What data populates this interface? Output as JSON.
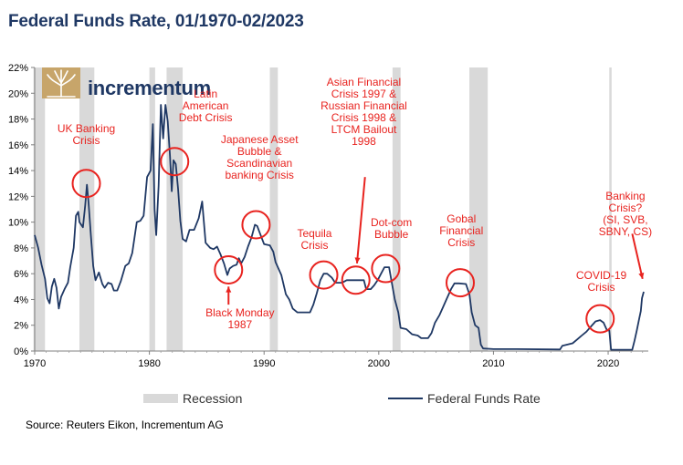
{
  "title": "Federal Funds Rate, 01/1970-02/2023",
  "source": "Source: Reuters Eikon, Incrementum AG",
  "logo_text": "incrementum",
  "legend": {
    "recession": "Recession",
    "rate": "Federal Funds Rate"
  },
  "colors": {
    "line": "#1f3864",
    "recession": "#d9d9d9",
    "annotation": "#e8231f",
    "title": "#1f3864"
  },
  "chart_data": {
    "type": "line",
    "title": "Federal Funds Rate, 01/1970-02/2023",
    "xlim": [
      1970,
      2023.5
    ],
    "ylim": [
      0,
      22
    ],
    "x_ticks": [
      "1970",
      "1980",
      "1990",
      "2000",
      "2010",
      "2020"
    ],
    "y_ticks": [
      "0%",
      "2%",
      "4%",
      "6%",
      "8%",
      "10%",
      "12%",
      "14%",
      "16%",
      "18%",
      "20%",
      "22%"
    ],
    "grid": false,
    "legend_placement": "bottom",
    "recessions": [
      [
        1969.9,
        1970.9
      ],
      [
        1973.9,
        1975.2
      ],
      [
        1980.0,
        1980.5
      ],
      [
        1981.5,
        1982.9
      ],
      [
        1990.5,
        1991.2
      ],
      [
        2001.2,
        2001.9
      ],
      [
        2007.9,
        2009.5
      ],
      [
        2020.1,
        2020.3
      ]
    ],
    "series": [
      {
        "name": "Federal Funds Rate",
        "points": [
          [
            1970.0,
            9.0
          ],
          [
            1970.3,
            8.0
          ],
          [
            1970.6,
            6.7
          ],
          [
            1970.9,
            5.6
          ],
          [
            1971.1,
            4.1
          ],
          [
            1971.3,
            3.7
          ],
          [
            1971.5,
            5.0
          ],
          [
            1971.7,
            5.6
          ],
          [
            1971.9,
            4.9
          ],
          [
            1972.1,
            3.3
          ],
          [
            1972.3,
            4.2
          ],
          [
            1972.6,
            4.8
          ],
          [
            1972.9,
            5.3
          ],
          [
            1973.1,
            6.5
          ],
          [
            1973.4,
            8.0
          ],
          [
            1973.6,
            10.5
          ],
          [
            1973.8,
            10.8
          ],
          [
            1973.9,
            10.0
          ],
          [
            1974.2,
            9.6
          ],
          [
            1974.4,
            11.3
          ],
          [
            1974.55,
            12.9
          ],
          [
            1974.7,
            11.5
          ],
          [
            1974.9,
            9.0
          ],
          [
            1975.1,
            6.6
          ],
          [
            1975.3,
            5.5
          ],
          [
            1975.6,
            6.1
          ],
          [
            1975.9,
            5.2
          ],
          [
            1976.1,
            4.9
          ],
          [
            1976.4,
            5.3
          ],
          [
            1976.7,
            5.2
          ],
          [
            1976.9,
            4.7
          ],
          [
            1977.2,
            4.7
          ],
          [
            1977.5,
            5.4
          ],
          [
            1977.9,
            6.6
          ],
          [
            1978.2,
            6.8
          ],
          [
            1978.5,
            7.6
          ],
          [
            1978.9,
            10.0
          ],
          [
            1979.2,
            10.1
          ],
          [
            1979.5,
            10.5
          ],
          [
            1979.8,
            13.5
          ],
          [
            1980.1,
            14.0
          ],
          [
            1980.3,
            17.6
          ],
          [
            1980.45,
            11.0
          ],
          [
            1980.6,
            9.0
          ],
          [
            1980.8,
            12.8
          ],
          [
            1981.0,
            19.1
          ],
          [
            1981.2,
            16.5
          ],
          [
            1981.4,
            19.1
          ],
          [
            1981.6,
            17.8
          ],
          [
            1981.8,
            15.1
          ],
          [
            1981.95,
            12.4
          ],
          [
            1982.1,
            14.8
          ],
          [
            1982.3,
            14.5
          ],
          [
            1982.5,
            12.6
          ],
          [
            1982.7,
            10.1
          ],
          [
            1982.9,
            8.7
          ],
          [
            1983.2,
            8.5
          ],
          [
            1983.5,
            9.4
          ],
          [
            1983.9,
            9.4
          ],
          [
            1984.3,
            10.3
          ],
          [
            1984.6,
            11.6
          ],
          [
            1984.9,
            8.4
          ],
          [
            1985.3,
            8.0
          ],
          [
            1985.6,
            7.9
          ],
          [
            1985.9,
            8.1
          ],
          [
            1986.2,
            7.5
          ],
          [
            1986.5,
            6.8
          ],
          [
            1986.8,
            5.9
          ],
          [
            1987.0,
            6.4
          ],
          [
            1987.3,
            6.6
          ],
          [
            1987.6,
            6.7
          ],
          [
            1987.8,
            7.2
          ],
          [
            1988.0,
            6.8
          ],
          [
            1988.3,
            7.3
          ],
          [
            1988.6,
            8.1
          ],
          [
            1988.9,
            8.8
          ],
          [
            1989.2,
            9.8
          ],
          [
            1989.4,
            9.7
          ],
          [
            1989.7,
            9.0
          ],
          [
            1990.0,
            8.3
          ],
          [
            1990.5,
            8.2
          ],
          [
            1990.8,
            7.7
          ],
          [
            1991.0,
            6.9
          ],
          [
            1991.5,
            5.9
          ],
          [
            1991.9,
            4.4
          ],
          [
            1992.2,
            4.0
          ],
          [
            1992.5,
            3.3
          ],
          [
            1992.9,
            3.0
          ],
          [
            1993.5,
            3.0
          ],
          [
            1994.0,
            3.0
          ],
          [
            1994.3,
            3.6
          ],
          [
            1994.6,
            4.5
          ],
          [
            1994.9,
            5.5
          ],
          [
            1995.2,
            6.0
          ],
          [
            1995.5,
            6.0
          ],
          [
            1995.9,
            5.7
          ],
          [
            1996.2,
            5.3
          ],
          [
            1996.8,
            5.3
          ],
          [
            1997.2,
            5.5
          ],
          [
            1997.8,
            5.5
          ],
          [
            1998.2,
            5.5
          ],
          [
            1998.7,
            5.5
          ],
          [
            1998.9,
            4.8
          ],
          [
            1999.3,
            4.8
          ],
          [
            1999.6,
            5.1
          ],
          [
            1999.9,
            5.5
          ],
          [
            2000.2,
            6.0
          ],
          [
            2000.5,
            6.5
          ],
          [
            2000.9,
            6.5
          ],
          [
            2001.1,
            5.5
          ],
          [
            2001.4,
            4.0
          ],
          [
            2001.7,
            3.0
          ],
          [
            2001.9,
            1.8
          ],
          [
            2002.4,
            1.7
          ],
          [
            2002.9,
            1.3
          ],
          [
            2003.4,
            1.2
          ],
          [
            2003.7,
            1.0
          ],
          [
            2004.3,
            1.0
          ],
          [
            2004.6,
            1.4
          ],
          [
            2004.9,
            2.2
          ],
          [
            2005.3,
            2.8
          ],
          [
            2005.6,
            3.4
          ],
          [
            2005.9,
            4.0
          ],
          [
            2006.3,
            4.8
          ],
          [
            2006.6,
            5.25
          ],
          [
            2007.0,
            5.25
          ],
          [
            2007.6,
            5.2
          ],
          [
            2007.9,
            4.4
          ],
          [
            2008.1,
            3.0
          ],
          [
            2008.4,
            2.0
          ],
          [
            2008.7,
            1.8
          ],
          [
            2008.9,
            0.5
          ],
          [
            2009.1,
            0.2
          ],
          [
            2010.0,
            0.15
          ],
          [
            2012.0,
            0.15
          ],
          [
            2015.8,
            0.12
          ],
          [
            2016.0,
            0.4
          ],
          [
            2016.9,
            0.6
          ],
          [
            2017.3,
            0.9
          ],
          [
            2017.7,
            1.2
          ],
          [
            2018.1,
            1.5
          ],
          [
            2018.5,
            1.9
          ],
          [
            2018.9,
            2.3
          ],
          [
            2019.3,
            2.4
          ],
          [
            2019.6,
            2.2
          ],
          [
            2019.9,
            1.6
          ],
          [
            2020.1,
            1.6
          ],
          [
            2020.25,
            0.1
          ],
          [
            2022.1,
            0.1
          ],
          [
            2022.3,
            0.8
          ],
          [
            2022.5,
            1.6
          ],
          [
            2022.7,
            2.5
          ],
          [
            2022.85,
            3.1
          ],
          [
            2022.95,
            4.1
          ],
          [
            2023.1,
            4.6
          ]
        ]
      }
    ],
    "annotations": [
      {
        "text": "UK Banking\nCrisis",
        "circle": [
          1974.5,
          13.0
        ],
        "label": [
          1974.5,
          16.8
        ]
      },
      {
        "text": "Latin\nAmerican\nDebt Crisis",
        "circle": [
          1982.2,
          14.7
        ],
        "label": [
          1984.9,
          19.0
        ]
      },
      {
        "text": "Japanese Asset\nBubble &\nScandinavian\nbanking Crisis",
        "circle": [
          1989.3,
          9.8
        ],
        "label": [
          1989.6,
          15.0
        ]
      },
      {
        "text": "Black Monday\n1987",
        "circle": [
          1986.9,
          6.3
        ],
        "label": [
          1987.9,
          2.5
        ]
      },
      {
        "text": "Tequila\nCrisis",
        "circle": [
          1995.2,
          5.9
        ],
        "label": [
          1994.4,
          8.6
        ]
      },
      {
        "text": "Asian Financial\nCrisis 1997 &\nRussian Financial\nCrisis 1998 &\nLTCM Bailout\n1998",
        "circle": [
          1998.0,
          5.5
        ],
        "label": [
          1998.7,
          18.5
        ]
      },
      {
        "text": "Dot-com\nBubble",
        "circle": [
          2000.6,
          6.4
        ],
        "label": [
          2001.1,
          9.5
        ]
      },
      {
        "text": "Gobal\nFinancial\nCrisis",
        "circle": [
          2007.1,
          5.3
        ],
        "label": [
          2007.2,
          9.3
        ]
      },
      {
        "text": "COVID-19\nCrisis",
        "circle": [
          2019.3,
          2.5
        ],
        "label": [
          2019.4,
          5.4
        ]
      },
      {
        "text": "Banking Crisis?\n(SI, SVB, SBNY, CS)",
        "circle": null,
        "label": [
          2021.5,
          11.5
        ]
      }
    ]
  }
}
